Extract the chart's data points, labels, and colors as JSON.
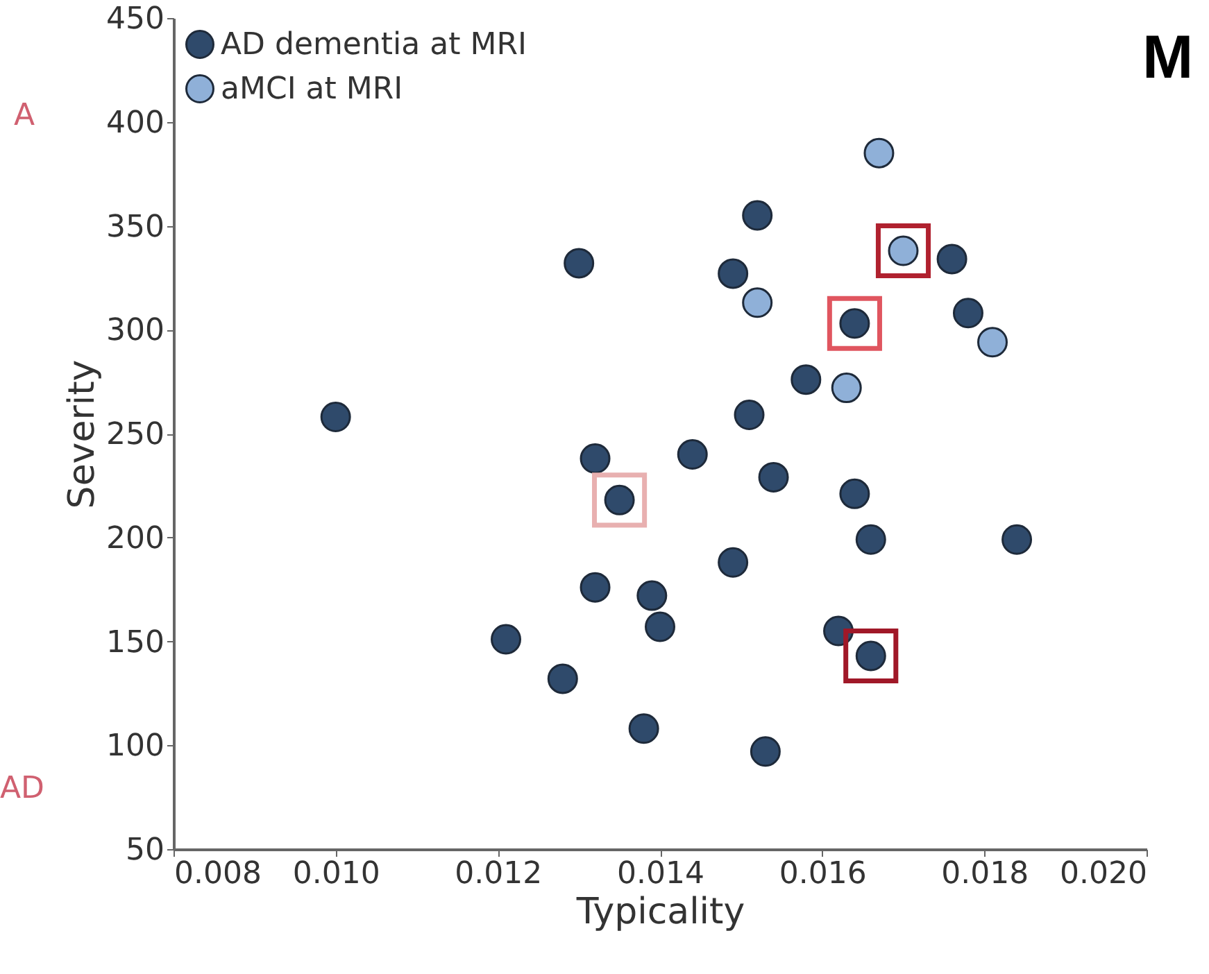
{
  "chart_data": {
    "type": "scatter",
    "title": "M",
    "xlabel": "Typicality",
    "ylabel": "Severity",
    "xlim": [
      0.008,
      0.02
    ],
    "ylim": [
      50,
      450
    ],
    "xticks": [
      0.008,
      {
        "value": 0.01,
        "label": "0.010"
      },
      0.012,
      0.014,
      0.016,
      0.018,
      {
        "value": 0.02,
        "label": "0.020"
      }
    ],
    "yticks": [
      50,
      100,
      150,
      200,
      250,
      300,
      350,
      400,
      450
    ],
    "legend": "top left",
    "grid": false,
    "marker": "circle",
    "annotations": [
      "A",
      "AD"
    ],
    "series": [
      {
        "name": "AD dementia at MRI",
        "color": "#2f4a6b",
        "x": [
          0.01,
          0.013,
          0.0152,
          0.0149,
          0.0176,
          0.0178,
          0.0164,
          0.0158,
          0.0151,
          0.0132,
          0.0144,
          0.0135,
          0.0154,
          0.0164,
          0.0166,
          0.0184,
          0.0149,
          0.0132,
          0.0139,
          0.014,
          0.0121,
          0.0162,
          0.0166,
          0.0128,
          0.0138,
          0.0153
        ],
        "values": [
          258,
          332,
          355,
          327,
          334,
          308,
          303,
          276,
          259,
          238,
          240,
          218,
          229,
          221,
          199,
          199,
          188,
          176,
          172,
          157,
          151,
          155,
          143,
          132,
          108,
          97
        ]
      },
      {
        "name": "aMCI at MRI",
        "color": "#8fb0d8",
        "x": [
          0.0167,
          0.017,
          0.0152,
          0.0181,
          0.0163
        ],
        "values": [
          385,
          338,
          313,
          294,
          272
        ]
      },
      {
        "type": "scatter",
        "marker": "square",
        "colors": [
          "#b0212f",
          "#e0555f",
          "#e8b0b0",
          "#a01828"
        ],
        "x": [
          0.017,
          0.0164,
          0.0135,
          0.0166
        ],
        "values": [
          338,
          303,
          218,
          143
        ]
      }
    ]
  }
}
